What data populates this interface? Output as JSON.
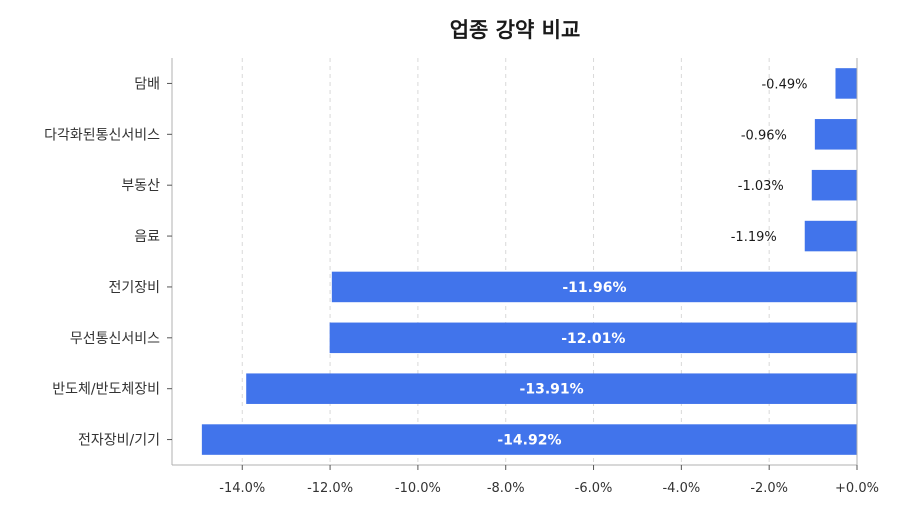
{
  "chart_data": {
    "type": "bar",
    "orientation": "horizontal",
    "title": "업종 강약 비교",
    "xlabel": "",
    "ylabel": "",
    "categories": [
      "담배",
      "다각화된통신서비스",
      "부동산",
      "음료",
      "전기장비",
      "무선통신서비스",
      "반도체/반도체장비",
      "전자장비/기기"
    ],
    "values": [
      -0.49,
      -0.96,
      -1.03,
      -1.19,
      -11.96,
      -12.01,
      -13.91,
      -14.92
    ],
    "value_labels": [
      "-0.49%",
      "-0.96%",
      "-1.03%",
      "-1.19%",
      "-11.96%",
      "-12.01%",
      "-13.91%",
      "-14.92%"
    ],
    "xlim": [
      -15.6,
      0
    ],
    "xticks": [
      -14,
      -12,
      -10,
      -8,
      -6,
      -4,
      -2,
      0
    ],
    "xtick_labels": [
      "-14.0%",
      "-12.0%",
      "-10.0%",
      "-8.0%",
      "-6.0%",
      "-4.0%",
      "-2.0%",
      "+0.0%"
    ],
    "grid": true,
    "legend": "none",
    "bar_color": "#4174eb"
  }
}
